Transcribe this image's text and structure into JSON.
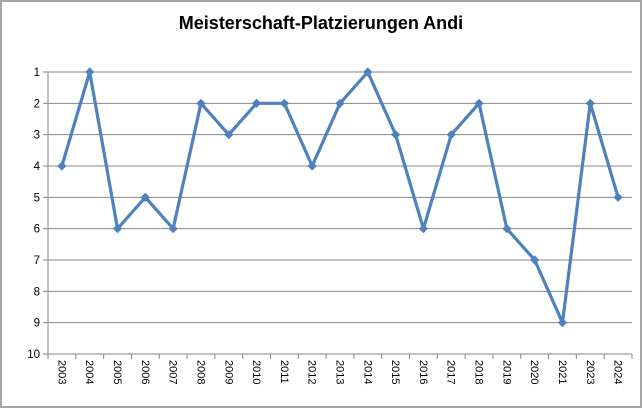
{
  "chart_data": {
    "type": "line",
    "title": "Meisterschaft-Platzierungen Andi",
    "categories": [
      "2003",
      "2004",
      "2005",
      "2006",
      "2007",
      "2008",
      "2009",
      "2010",
      "2011",
      "2012",
      "2013",
      "2014",
      "2015",
      "2016",
      "2017",
      "2018",
      "2019",
      "2020",
      "2021",
      "2023",
      "2024"
    ],
    "values": [
      4,
      1,
      6,
      5,
      6,
      2,
      3,
      2,
      2,
      4,
      2,
      1,
      3,
      6,
      3,
      2,
      6,
      7,
      9,
      2,
      5
    ],
    "xlabel": "",
    "ylabel": "",
    "ylim": [
      1,
      10
    ],
    "y_axis_reversed": true,
    "y_ticks": [
      1,
      2,
      3,
      4,
      5,
      6,
      7,
      8,
      9,
      10
    ],
    "grid": true,
    "legend": "none",
    "marker": "diamond",
    "line_color": "#4F81BD",
    "gridline_color": "#868686",
    "axis_color": "#868686",
    "text_color": "#000000",
    "frame_border_color": "#A6A6A6",
    "background": "#FFFFFF"
  }
}
